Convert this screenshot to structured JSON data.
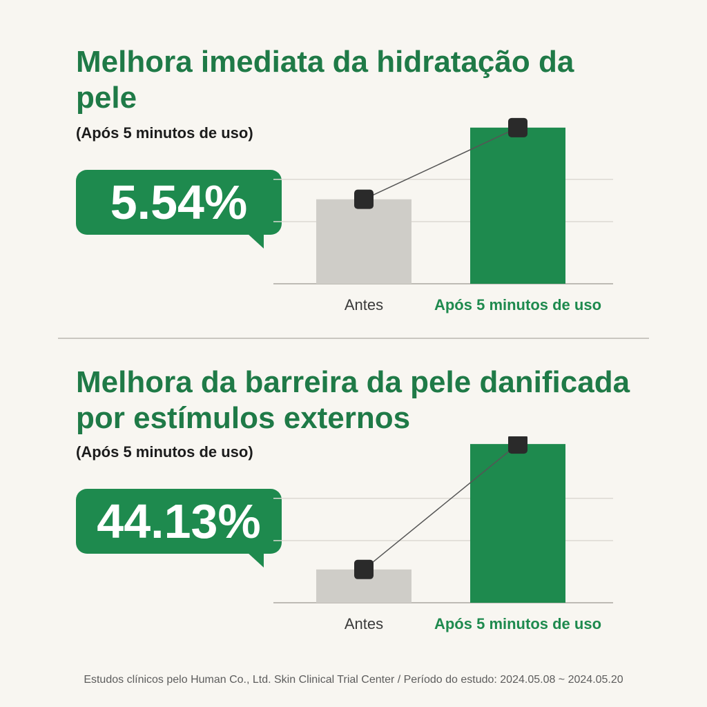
{
  "panels": [
    {
      "title": "Melhora imediata da hidratação da pele",
      "subtitle": "(Após 5 minutos de uso)",
      "callout": "5.54%"
    },
    {
      "title": "Melhora da barreira da pele danificada por estímulos externos",
      "subtitle": "(Após 5 minutos de uso)",
      "callout": "44.13%"
    }
  ],
  "footnote": "Estudos clínicos pelo Human Co., Ltd. Skin Clinical Trial Center / Período do estudo: 2024.05.08 ~ 2024.05.20",
  "colors": {
    "accent": "#1e8a4e",
    "title": "#1f7a47",
    "before_bar": "#cfcdc8",
    "marker": "#2a2a2a"
  },
  "chart_data": [
    {
      "type": "bar",
      "categories": [
        "Antes",
        "Após 5 minutos de uso"
      ],
      "values": [
        66,
        122
      ],
      "ylim": [
        0,
        130
      ],
      "grid": true,
      "connector_line": true
    },
    {
      "type": "bar",
      "categories": [
        "Antes",
        "Após 5 minutos de uso"
      ],
      "values": [
        26,
        124
      ],
      "ylim": [
        0,
        130
      ],
      "grid": true,
      "connector_line": true
    }
  ]
}
